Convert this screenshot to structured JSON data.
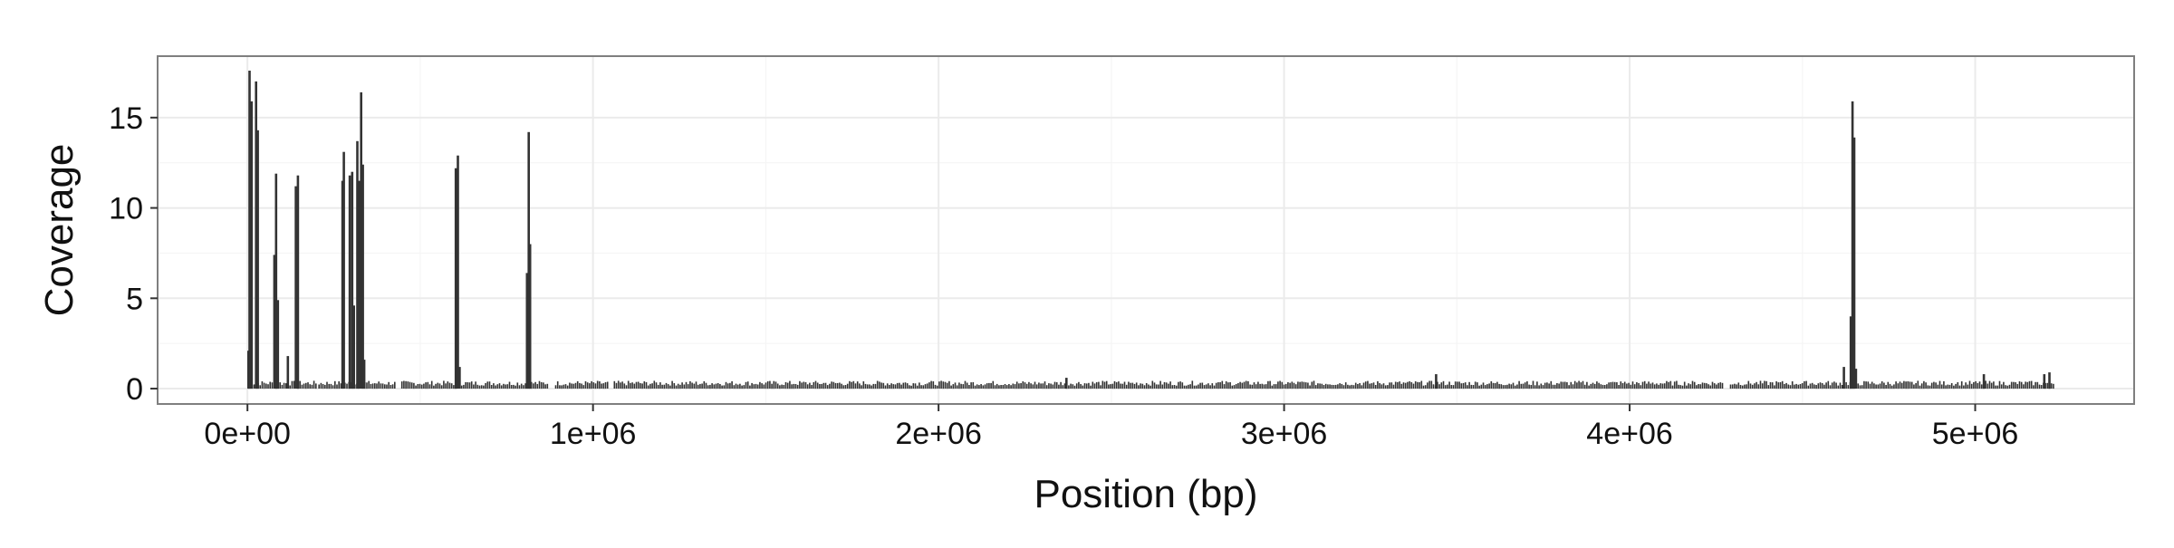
{
  "chart_data": {
    "type": "bar",
    "title": "",
    "xlabel": "Position (bp)",
    "ylabel": "Coverage",
    "xlim": [
      -260000,
      5460000
    ],
    "ylim": [
      -0.85,
      18.4
    ],
    "x_ticks": [
      {
        "value": 0,
        "label": "0e+00"
      },
      {
        "value": 1000000,
        "label": "1e+06"
      },
      {
        "value": 2000000,
        "label": "2e+06"
      },
      {
        "value": 3000000,
        "label": "3e+06"
      },
      {
        "value": 4000000,
        "label": "4e+06"
      },
      {
        "value": 5000000,
        "label": "5e+06"
      }
    ],
    "y_ticks": [
      {
        "value": 0,
        "label": "0"
      },
      {
        "value": 5,
        "label": "5"
      },
      {
        "value": 10,
        "label": "10"
      },
      {
        "value": 15,
        "label": "15"
      }
    ],
    "grid": true,
    "legend": "none",
    "colors": {
      "bar": "#333333",
      "panel_border": "#7f7f7f",
      "grid_major": "#ebebeb",
      "grid_minor": "#f5f5f5"
    },
    "baseline": {
      "typical_value": 0.3,
      "segments": [
        [
          0,
          200000
        ],
        [
          205000,
          425000
        ],
        [
          445000,
          870000
        ],
        [
          890000,
          1045000
        ],
        [
          1060000,
          4270000
        ],
        [
          4290000,
          5230000
        ]
      ]
    },
    "peaks": [
      {
        "x": 3000,
        "y": 2.1
      },
      {
        "x": 6000,
        "y": 17.6
      },
      {
        "x": 12000,
        "y": 15.9
      },
      {
        "x": 25000,
        "y": 17.0
      },
      {
        "x": 30000,
        "y": 14.3
      },
      {
        "x": 78000,
        "y": 7.4
      },
      {
        "x": 83000,
        "y": 11.9
      },
      {
        "x": 88000,
        "y": 4.9
      },
      {
        "x": 117000,
        "y": 1.8
      },
      {
        "x": 140000,
        "y": 11.2
      },
      {
        "x": 146000,
        "y": 11.8
      },
      {
        "x": 275000,
        "y": 11.5
      },
      {
        "x": 279000,
        "y": 13.1
      },
      {
        "x": 296000,
        "y": 11.8
      },
      {
        "x": 303000,
        "y": 12.0
      },
      {
        "x": 308000,
        "y": 4.6
      },
      {
        "x": 318000,
        "y": 13.7
      },
      {
        "x": 324000,
        "y": 11.5
      },
      {
        "x": 329000,
        "y": 16.4
      },
      {
        "x": 334000,
        "y": 12.4
      },
      {
        "x": 338000,
        "y": 1.6
      },
      {
        "x": 603000,
        "y": 12.2
      },
      {
        "x": 609000,
        "y": 12.9
      },
      {
        "x": 614000,
        "y": 1.2
      },
      {
        "x": 809000,
        "y": 6.4
      },
      {
        "x": 814000,
        "y": 14.2
      },
      {
        "x": 818000,
        "y": 8.0
      },
      {
        "x": 2370000,
        "y": 0.6
      },
      {
        "x": 3440000,
        "y": 0.8
      },
      {
        "x": 4620000,
        "y": 1.2
      },
      {
        "x": 4640000,
        "y": 4.0
      },
      {
        "x": 4645000,
        "y": 15.9
      },
      {
        "x": 4650000,
        "y": 13.9
      },
      {
        "x": 4655000,
        "y": 1.1
      },
      {
        "x": 5025000,
        "y": 0.8
      },
      {
        "x": 5200000,
        "y": 0.8
      },
      {
        "x": 5215000,
        "y": 0.9
      }
    ]
  }
}
